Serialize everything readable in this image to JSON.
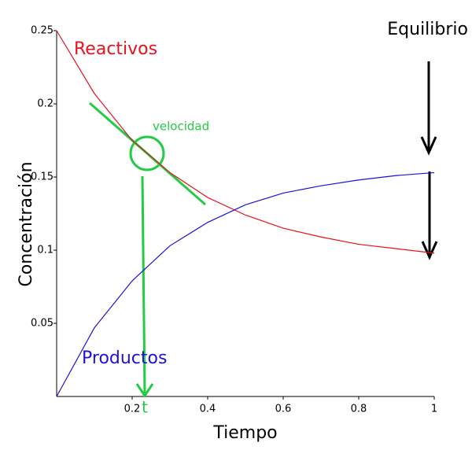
{
  "chart_data": {
    "type": "line",
    "x": [
      0,
      0.1,
      0.2,
      0.3,
      0.4,
      0.5,
      0.6,
      0.7,
      0.8,
      0.9,
      1
    ],
    "series": [
      {
        "name": "Reactivos",
        "color": "#e8121c",
        "values": [
          0.25,
          0.207,
          0.175,
          0.153,
          0.136,
          0.124,
          0.115,
          0.109,
          0.104,
          0.101,
          0.098
        ]
      },
      {
        "name": "Productos",
        "color": "#1c12d8",
        "values": [
          0,
          0.047,
          0.079,
          0.103,
          0.119,
          0.131,
          0.139,
          0.144,
          0.148,
          0.151,
          0.153
        ]
      }
    ],
    "xlabel": "Tiempo",
    "ylabel": "Concentración",
    "xlim": [
      0,
      1
    ],
    "ylim": [
      0,
      0.25
    ],
    "xticks": [
      0.2,
      0.4,
      0.6,
      0.8,
      1
    ],
    "yticks": [
      0.05,
      0.1,
      0.15,
      0.2,
      0.25
    ],
    "annotations": {
      "equilibrium": "Equilibrio",
      "rate": "velocidad",
      "time": "t"
    }
  }
}
